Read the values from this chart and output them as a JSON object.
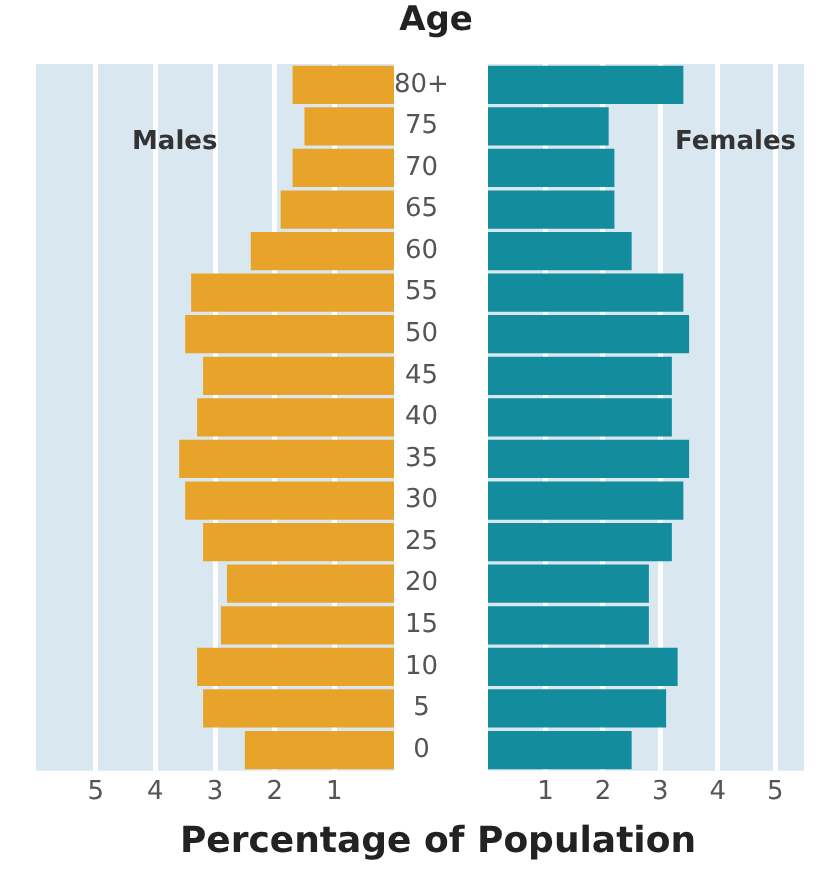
{
  "chart_data": [
    {
      "type": "bar",
      "orientation": "horizontal",
      "categories": [
        "80+",
        "75",
        "70",
        "65",
        "60",
        "55",
        "50",
        "45",
        "40",
        "35",
        "30",
        "25",
        "20",
        "15",
        "10",
        "5",
        "0"
      ],
      "series": [
        {
          "name": "Males",
          "color": "#e8a42a",
          "values": [
            1.7,
            1.5,
            1.7,
            1.9,
            2.4,
            3.4,
            3.5,
            3.2,
            3.3,
            3.6,
            3.5,
            3.2,
            2.8,
            2.9,
            3.3,
            3.2,
            2.5
          ]
        }
      ],
      "xlim": [
        6,
        0
      ],
      "xticks": [
        5,
        4,
        3,
        2,
        1
      ],
      "grid": "x"
    },
    {
      "type": "bar",
      "orientation": "horizontal",
      "title": "Age",
      "xlabel": "Percentage of Population",
      "categories": [
        null,
        null,
        null,
        null,
        null,
        null,
        null,
        null,
        null,
        null,
        null,
        null,
        null,
        null,
        null,
        null,
        null
      ],
      "series": [
        {
          "name": "Females",
          "color": "#138c9e",
          "values": [
            3.4,
            2.1,
            2.2,
            2.2,
            2.5,
            3.4,
            3.5,
            3.2,
            3.2,
            3.5,
            3.4,
            3.2,
            2.8,
            2.8,
            3.3,
            3.1,
            2.5
          ]
        }
      ],
      "xlim": [
        0,
        5.5
      ],
      "xticks": [
        1,
        2,
        3,
        4,
        5
      ],
      "tick_labels": "x",
      "grid": "x"
    }
  ]
}
